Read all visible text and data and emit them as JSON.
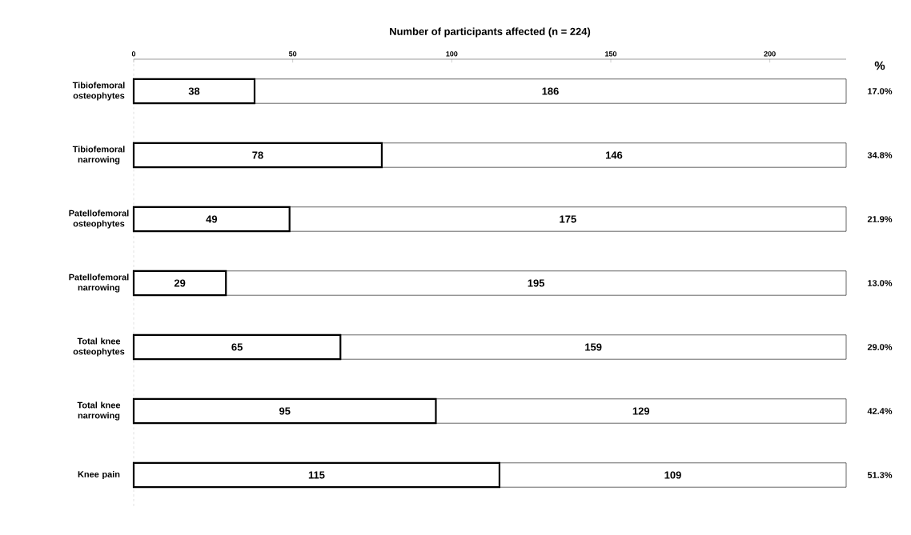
{
  "chart_data": {
    "type": "bar",
    "orientation": "horizontal",
    "stacked": true,
    "title": "Number of participants affected (n = 224)",
    "categories": [
      "Tibiofemoral osteophytes",
      "Tibiofemoral narrowing",
      "Patellofemoral osteophytes",
      "Patellofemoral narrowing",
      "Total knee osteophytes",
      "Total knee narrowing",
      "Knee pain"
    ],
    "series": [
      {
        "color": "#ffffff",
        "values": [
          38,
          78,
          49,
          29,
          65,
          95,
          115
        ],
        "value_labels": [
          "38",
          "78",
          "49",
          "29",
          "65",
          "95",
          "115"
        ]
      },
      {
        "color": "#ffffff",
        "values": [
          186,
          146,
          175,
          195,
          159,
          129,
          109
        ],
        "value_labels": [
          "186",
          "146",
          "175",
          "195",
          "159",
          "129",
          "109"
        ]
      }
    ],
    "xlim": [
      0,
      224
    ],
    "xticks": [
      0,
      50,
      100,
      150,
      200
    ],
    "annotations": [
      "%",
      "17.0%",
      "34.8%",
      "21.9%",
      "13.0%",
      "29.0%",
      "42.4%",
      "51.3%"
    ]
  }
}
